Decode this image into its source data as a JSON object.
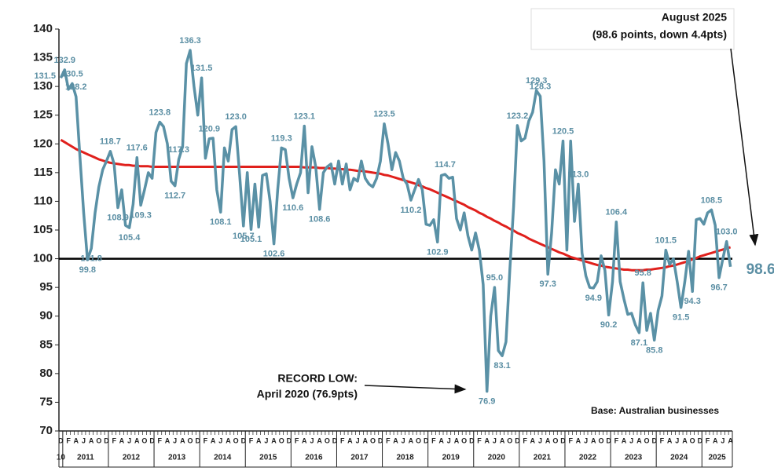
{
  "chart_data": {
    "type": "line",
    "categories": [
      "D",
      null,
      "F",
      null,
      "A",
      null,
      "J",
      null,
      "A",
      null,
      "O",
      null,
      "D",
      null,
      "F",
      null,
      "A",
      null,
      "J",
      null,
      "A",
      null,
      "O",
      null,
      "D",
      null,
      "F",
      null,
      "A",
      null,
      "J",
      null,
      "A",
      null,
      "O",
      null,
      "D",
      null,
      "F",
      null,
      "A",
      null,
      "J",
      null,
      "A",
      null,
      "O",
      null,
      "D",
      null,
      "F",
      null,
      "A",
      null,
      "J",
      null,
      "A",
      null,
      "O",
      null,
      "D",
      null,
      "F",
      null,
      "A",
      null,
      "J",
      null,
      "A",
      null,
      "O",
      null,
      "D",
      null,
      "F",
      null,
      "A",
      null,
      "J",
      null,
      "A",
      null,
      "O",
      null,
      "D",
      null,
      "F",
      null,
      "A",
      null,
      "J",
      null,
      "A",
      null,
      "O",
      null,
      "D",
      null,
      "F",
      null,
      "A",
      null,
      "J",
      null,
      "A",
      null,
      "O",
      null,
      "D",
      null,
      "F",
      null,
      "A",
      null,
      "J",
      null,
      "A",
      null,
      "O",
      null,
      "D",
      null,
      "F",
      null,
      "A",
      null,
      "J",
      null,
      "A",
      null,
      "O",
      null,
      "D",
      null,
      "F",
      null,
      "A",
      null,
      "J",
      null,
      "A",
      null,
      "O",
      null,
      "D",
      null,
      "F",
      null,
      "A",
      null,
      "J",
      null,
      "A",
      null,
      "O",
      null,
      "D",
      null,
      "F",
      null,
      "A",
      null,
      "J",
      null,
      "A",
      null,
      "O",
      null,
      "D",
      null,
      "F",
      null,
      "A",
      null,
      "J",
      null,
      "A"
    ],
    "x_groups": [
      "10",
      "2011",
      "2012",
      "2013",
      "2014",
      "2015",
      "2016",
      "2017",
      "2018",
      "2019",
      "2020",
      "2021",
      "2022",
      "2023",
      "2024",
      "2025"
    ],
    "series": [
      {
        "color": "#5a91a6",
        "values": [
          131.5,
          132.9,
          129.5,
          130.5,
          128.2,
          118,
          108,
          99.8,
          101.8,
          108,
          112.5,
          115.5,
          117,
          118.7,
          116.5,
          108.9,
          112,
          105.8,
          105.4,
          109.5,
          117.6,
          109.3,
          112,
          115,
          114,
          122,
          123.8,
          123,
          120,
          113.5,
          112.7,
          117.3,
          119.5,
          134,
          136.3,
          130,
          125,
          131.5,
          117.5,
          120.9,
          121,
          112,
          108.1,
          119.3,
          117,
          122.5,
          123.0,
          114.5,
          105.7,
          115,
          105.1,
          113,
          105.5,
          114.5,
          114.8,
          110,
          102.6,
          112,
          119.3,
          119,
          114,
          110.6,
          113,
          115,
          123.1,
          111.5,
          119.5,
          116,
          108.6,
          115,
          116,
          116.5,
          113,
          117,
          113,
          116.5,
          112,
          114,
          113.5,
          117,
          114,
          113,
          112.5,
          114,
          117,
          123.5,
          120,
          115.5,
          118.5,
          117,
          114,
          113,
          110.2,
          112,
          113.8,
          112,
          106,
          105.8,
          106.8,
          102.9,
          114.5,
          114.7,
          114,
          114.2,
          107,
          105,
          108,
          104,
          101.5,
          104.5,
          101.5,
          95.5,
          76.9,
          90,
          95.0,
          84,
          83.1,
          85.5,
          98,
          109,
          123.2,
          120.5,
          121,
          124,
          125.5,
          129.3,
          128.3,
          117,
          97.3,
          104.5,
          115.5,
          113,
          120.5,
          101.5,
          120.5,
          106.5,
          113.0,
          101,
          97,
          95,
          94.9,
          96,
          100.5,
          98,
          90.2,
          96,
          106.4,
          96,
          93,
          90.3,
          90.5,
          88.5,
          87.1,
          95.8,
          87.5,
          90.5,
          85.8,
          91,
          93.5,
          101.5,
          99,
          100,
          96,
          91.5,
          96,
          101.3,
          94.3,
          106.8,
          107,
          106,
          108,
          108.5,
          105.8,
          96.7,
          100,
          103.0,
          98.6
        ],
        "value_labels": [
          "131.5",
          "132.9",
          null,
          "130.5",
          "128.2",
          null,
          null,
          "99.8",
          "101.8",
          null,
          null,
          null,
          null,
          "118.7",
          null,
          "108.9",
          null,
          null,
          "105.4",
          null,
          "117.6",
          "109.3",
          null,
          null,
          null,
          null,
          "123.8",
          null,
          null,
          null,
          "112.7",
          "117.3",
          null,
          null,
          "136.3",
          null,
          null,
          "131.5",
          null,
          "120.9",
          null,
          null,
          "108.1",
          null,
          null,
          null,
          "123.0",
          null,
          "105.7",
          null,
          "105.1",
          null,
          null,
          null,
          null,
          null,
          "102.6",
          null,
          "119.3",
          null,
          null,
          "110.6",
          null,
          null,
          "123.1",
          null,
          null,
          null,
          "108.6",
          null,
          null,
          null,
          null,
          null,
          null,
          null,
          null,
          null,
          null,
          null,
          null,
          null,
          null,
          null,
          null,
          "123.5",
          null,
          null,
          null,
          null,
          null,
          null,
          "110.2",
          null,
          null,
          null,
          null,
          null,
          null,
          "102.9",
          null,
          "114.7",
          null,
          null,
          null,
          null,
          null,
          null,
          null,
          null,
          null,
          null,
          "76.9",
          null,
          "95.0",
          null,
          "83.1",
          null,
          null,
          null,
          "123.2",
          null,
          null,
          null,
          null,
          "129.3",
          "128.3",
          null,
          "97.3",
          null,
          null,
          null,
          "120.5",
          null,
          null,
          null,
          "113.0",
          null,
          null,
          null,
          "94.9",
          null,
          null,
          null,
          "90.2",
          null,
          "106.4",
          null,
          null,
          null,
          null,
          null,
          "87.1",
          "95.8",
          null,
          null,
          "85.8",
          null,
          null,
          "101.5",
          null,
          null,
          null,
          "91.5",
          null,
          null,
          "94.3",
          null,
          null,
          null,
          null,
          "108.5",
          null,
          "96.7",
          null,
          "103.0",
          "98.6"
        ]
      },
      {
        "color": "#e0201c",
        "values": [
          120.7,
          120.3,
          119.9,
          119.5,
          119.1,
          118.8,
          118.5,
          118.2,
          117.9,
          117.6,
          117.3,
          117.1,
          116.9,
          116.7,
          116.6,
          116.5,
          116.4,
          116.3,
          116.3,
          116.2,
          116.2,
          116.1,
          116.1,
          116.1,
          116.0,
          116.0,
          116.0,
          116.0,
          116.0,
          116.0,
          116.0,
          116.0,
          116.0,
          116.0,
          116.0,
          116.0,
          116.0,
          116.0,
          116.0,
          116.0,
          116.0,
          116.0,
          116.0,
          116.0,
          116.0,
          116.0,
          116.0,
          116.0,
          116.0,
          116.0,
          116.0,
          116.0,
          116.0,
          116.0,
          116.0,
          116.0,
          116.0,
          116.0,
          116.0,
          116.0,
          116.0,
          116.0,
          116.0,
          116.0,
          115.9,
          115.9,
          115.9,
          115.9,
          115.8,
          115.8,
          115.8,
          115.7,
          115.7,
          115.6,
          115.6,
          115.5,
          115.5,
          115.4,
          115.3,
          115.3,
          115.2,
          115.1,
          115.0,
          114.9,
          114.8,
          114.6,
          114.5,
          114.3,
          114.1,
          113.9,
          113.7,
          113.5,
          113.3,
          113.1,
          112.8,
          112.6,
          112.3,
          112.1,
          111.8,
          111.5,
          111.2,
          110.9,
          110.6,
          110.3,
          110.0,
          109.7,
          109.4,
          109.0,
          108.7,
          108.4,
          108.0,
          107.7,
          107.3,
          107.0,
          106.6,
          106.3,
          105.9,
          105.6,
          105.2,
          104.9,
          104.5,
          104.2,
          103.9,
          103.5,
          103.2,
          102.9,
          102.6,
          102.3,
          102.0,
          101.7,
          101.4,
          101.1,
          100.9,
          100.6,
          100.3,
          100.1,
          99.9,
          99.7,
          99.5,
          99.3,
          99.1,
          98.9,
          98.8,
          98.6,
          98.5,
          98.4,
          98.3,
          98.2,
          98.1,
          98.1,
          98.0,
          98.0,
          98.0,
          98.0,
          98.1,
          98.1,
          98.2,
          98.3,
          98.4,
          98.5,
          98.7,
          98.8,
          99.0,
          99.2,
          99.4,
          99.6,
          99.9,
          100.1,
          100.4,
          100.6,
          100.8,
          101.0,
          101.2,
          101.4,
          101.6,
          101.8,
          102.0
        ]
      }
    ],
    "reference_line": {
      "value": 100,
      "color": "#000000"
    },
    "ylim": [
      70,
      140
    ],
    "yticks": [
      70,
      75,
      80,
      85,
      90,
      95,
      100,
      105,
      110,
      115,
      120,
      125,
      130,
      135,
      140
    ],
    "grid": false,
    "annotations": {
      "latest": [
        "August 2025",
        "(98.6 points, down 4.4pts)"
      ],
      "record_low": [
        "RECORD LOW:",
        "April 2020 (76.9pts)"
      ],
      "base": "Base: Australian businesses"
    }
  }
}
